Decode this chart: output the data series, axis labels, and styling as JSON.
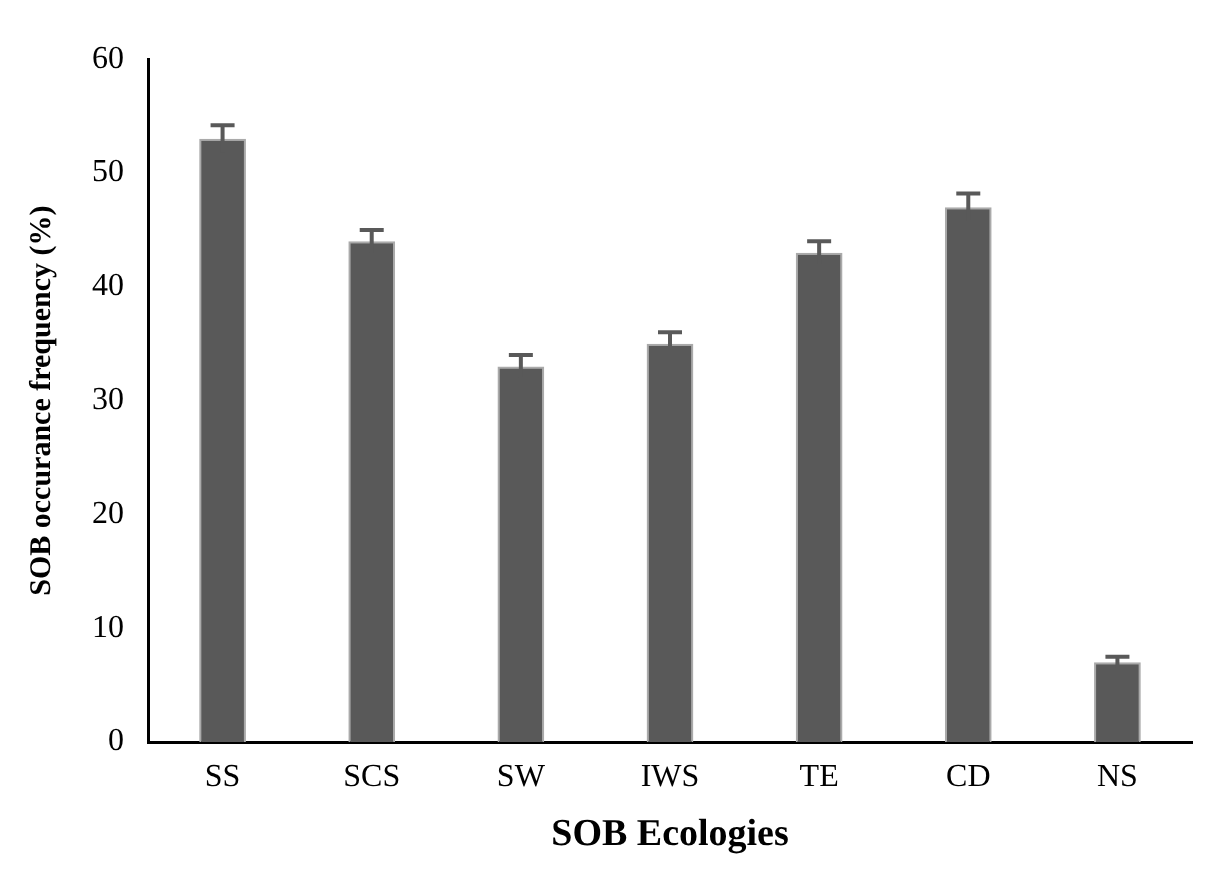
{
  "chart_data": {
    "type": "bar",
    "xlabel": "SOB Ecologies",
    "ylabel": "SOB occurance frequency (%)",
    "categories": [
      "SS",
      "SCS",
      "SW",
      "IWS",
      "TE",
      "CD",
      "NS"
    ],
    "values": [
      53,
      44,
      33,
      35,
      43,
      47,
      7
    ],
    "errors": [
      1.2,
      1,
      1,
      1,
      1,
      1.2,
      0.5
    ],
    "color": "#595959",
    "ylim": [
      0,
      60
    ],
    "yticks": [
      0,
      10,
      20,
      30,
      40,
      50,
      60
    ],
    "grid": false,
    "legend": false
  }
}
